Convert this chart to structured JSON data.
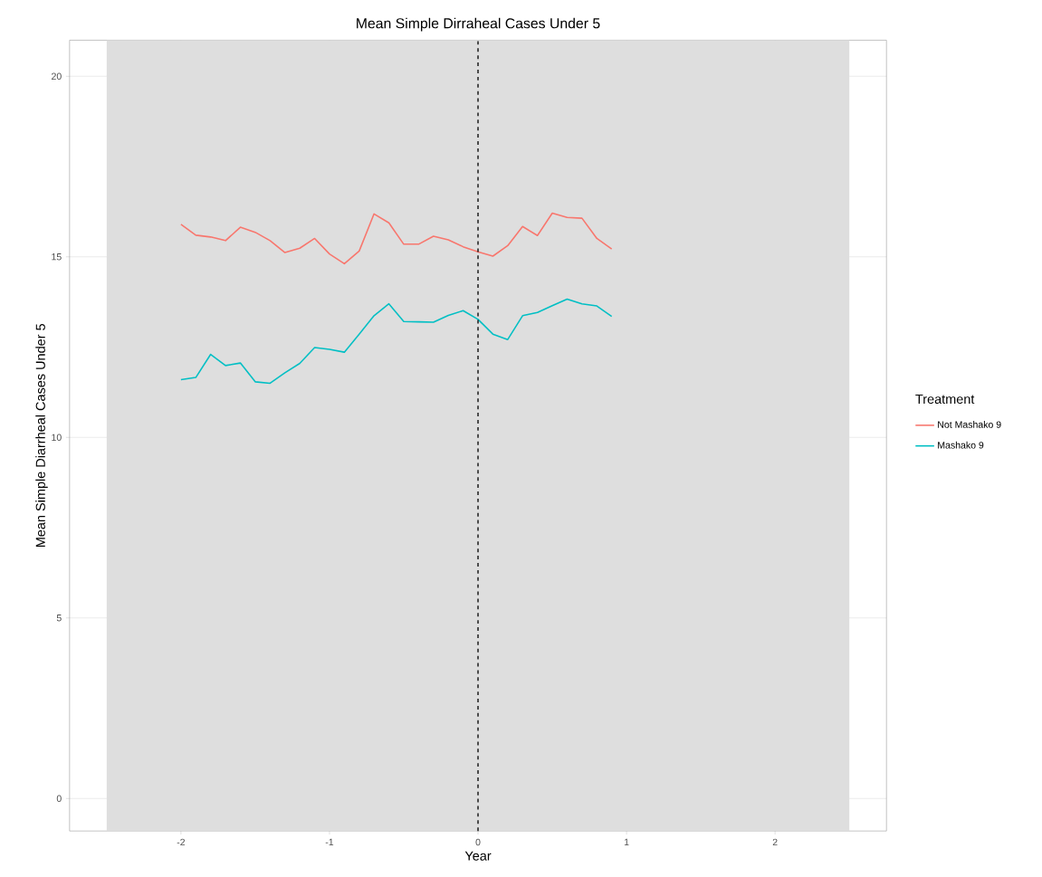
{
  "chart_data": {
    "type": "line",
    "title": "Mean Simple Dirraheal Cases Under 5",
    "xlabel": "Year",
    "ylabel": "Mean Simple Diarrheal Cases Under 5",
    "legend_title": "Treatment",
    "x": [
      -2.0,
      -1.9,
      -1.8,
      -1.7,
      -1.6,
      -1.5,
      -1.4,
      -1.3,
      -1.2,
      -1.1,
      -1.0,
      -0.9,
      -0.8,
      -0.7,
      -0.6,
      -0.5,
      -0.4,
      -0.3,
      -0.2,
      -0.1,
      0.0,
      0.1,
      0.2,
      0.3,
      0.4,
      0.5,
      0.6,
      0.7,
      0.8,
      0.9
    ],
    "series": [
      {
        "name": "Not Mashako 9",
        "color": "#f8766d",
        "values": [
          15.9,
          15.6,
          15.55,
          15.45,
          15.82,
          15.68,
          15.45,
          15.12,
          15.24,
          15.51,
          15.08,
          14.81,
          15.16,
          16.19,
          15.94,
          15.35,
          15.35,
          15.57,
          15.47,
          15.28,
          15.14,
          15.02,
          15.31,
          15.84,
          15.59,
          16.21,
          16.09,
          16.07,
          15.51,
          15.22
        ]
      },
      {
        "name": "Mashako 9",
        "color": "#00bfc4",
        "values": [
          11.6,
          11.66,
          12.3,
          11.99,
          12.06,
          11.54,
          11.5,
          11.79,
          12.05,
          12.49,
          12.44,
          12.36,
          12.86,
          13.37,
          13.7,
          13.21,
          13.2,
          13.19,
          13.38,
          13.51,
          13.27,
          12.86,
          12.71,
          13.37,
          13.46,
          13.65,
          13.83,
          13.7,
          13.64,
          13.35
        ]
      }
    ],
    "xlim": [
      -2.75,
      2.75
    ],
    "ylim": [
      -0.9,
      21
    ],
    "xticks": [
      -2,
      -1,
      0,
      1,
      2
    ],
    "yticks": [
      0,
      5,
      10,
      15,
      20
    ],
    "ref_lines": [
      {
        "axis": "x",
        "value": 0,
        "line_style": "dashed",
        "color": "#000000"
      }
    ],
    "bands": [
      {
        "axis": "x",
        "from": -2.5,
        "to": 2.5,
        "color": "#dedede"
      }
    ],
    "grid": true,
    "legend": "right",
    "marker": "none",
    "line_style": "solid"
  }
}
